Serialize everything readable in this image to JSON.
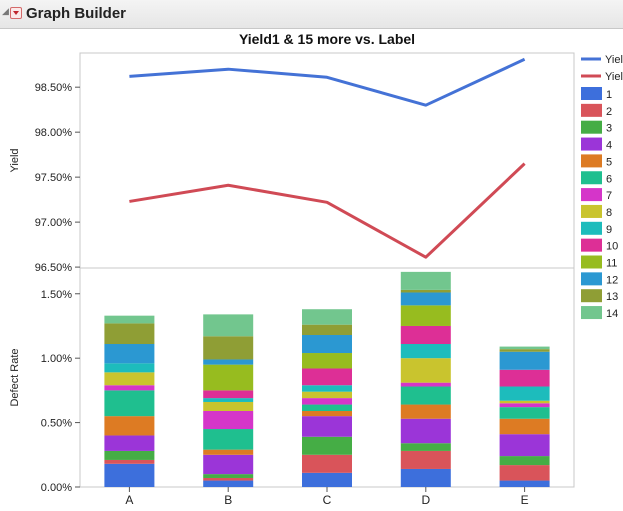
{
  "app": {
    "title": "Graph Builder"
  },
  "chart_data": {
    "type": "line+stacked-bar",
    "title": "Yield1 & 15 more vs. Label",
    "xlabel": "",
    "categories": [
      "A",
      "B",
      "C",
      "D",
      "E"
    ],
    "top_panel": {
      "type": "line",
      "ylabel": "Yield",
      "ylim": [
        0.9649,
        0.9888
      ],
      "yticks": [
        0.965,
        0.97,
        0.975,
        0.98,
        0.985
      ],
      "ytick_labels": [
        "96.50%",
        "97.00%",
        "97.50%",
        "98.00%",
        "98.50%"
      ],
      "series": [
        {
          "name": "Yiel",
          "color": "#4472d6",
          "values": [
            0.9862,
            0.987,
            0.9861,
            0.983,
            0.9881
          ]
        },
        {
          "name": "Yiel",
          "color": "#d04a55",
          "values": [
            0.9723,
            0.9741,
            0.9722,
            0.9661,
            0.9765
          ]
        }
      ]
    },
    "bottom_panel": {
      "type": "stacked-bar",
      "ylabel": "Defect Rate",
      "ylim": [
        0,
        0.017
      ],
      "yticks": [
        0,
        0.005,
        0.01,
        0.015
      ],
      "ytick_labels": [
        "0.00%",
        "0.50%",
        "1.00%",
        "1.50%"
      ],
      "series": [
        {
          "name": "1",
          "color": "#3d6fdc",
          "values": [
            0.0018,
            0.0005,
            0.0011,
            0.0014,
            0.0005
          ]
        },
        {
          "name": "2",
          "color": "#d9545a",
          "values": [
            0.0003,
            0.0002,
            0.0014,
            0.0014,
            0.0012
          ]
        },
        {
          "name": "3",
          "color": "#45ad45",
          "values": [
            0.0007,
            0.0003,
            0.0014,
            0.0006,
            0.0007
          ]
        },
        {
          "name": "4",
          "color": "#9b35d8",
          "values": [
            0.0012,
            0.0015,
            0.0016,
            0.0019,
            0.0017
          ]
        },
        {
          "name": "5",
          "color": "#dd7b23",
          "values": [
            0.0015,
            0.0004,
            0.0004,
            0.0011,
            0.0012
          ]
        },
        {
          "name": "6",
          "color": "#1fbf8f",
          "values": [
            0.002,
            0.0016,
            0.0005,
            0.0014,
            0.0009
          ]
        },
        {
          "name": "7",
          "color": "#d535c9",
          "values": [
            0.0004,
            0.0014,
            0.0005,
            0.0003,
            0.0003
          ]
        },
        {
          "name": "8",
          "color": "#c9c42e",
          "values": [
            0.001,
            0.0007,
            0.0005,
            0.0019,
            0.0002
          ]
        },
        {
          "name": "9",
          "color": "#1dbcbc",
          "values": [
            0.0007,
            0.0003,
            0.0005,
            0.0011,
            0.0011
          ]
        },
        {
          "name": "10",
          "color": "#dd2f96",
          "values": [
            0.0,
            0.0006,
            0.0013,
            0.0014,
            0.0013
          ]
        },
        {
          "name": "11",
          "color": "#97bc1f",
          "values": [
            0.0,
            0.002,
            0.0012,
            0.0016,
            0.0
          ]
        },
        {
          "name": "12",
          "color": "#2b98d2",
          "values": [
            0.0015,
            0.0004,
            0.0014,
            0.001,
            0.0014
          ]
        },
        {
          "name": "13",
          "color": "#8f9e35",
          "values": [
            0.0016,
            0.0018,
            0.0008,
            0.0002,
            0.0002
          ]
        },
        {
          "name": "14",
          "color": "#72c68e",
          "values": [
            0.0006,
            0.0017,
            0.0012,
            0.0014,
            0.0002
          ]
        }
      ]
    },
    "legend_position": "right",
    "grid": false
  }
}
